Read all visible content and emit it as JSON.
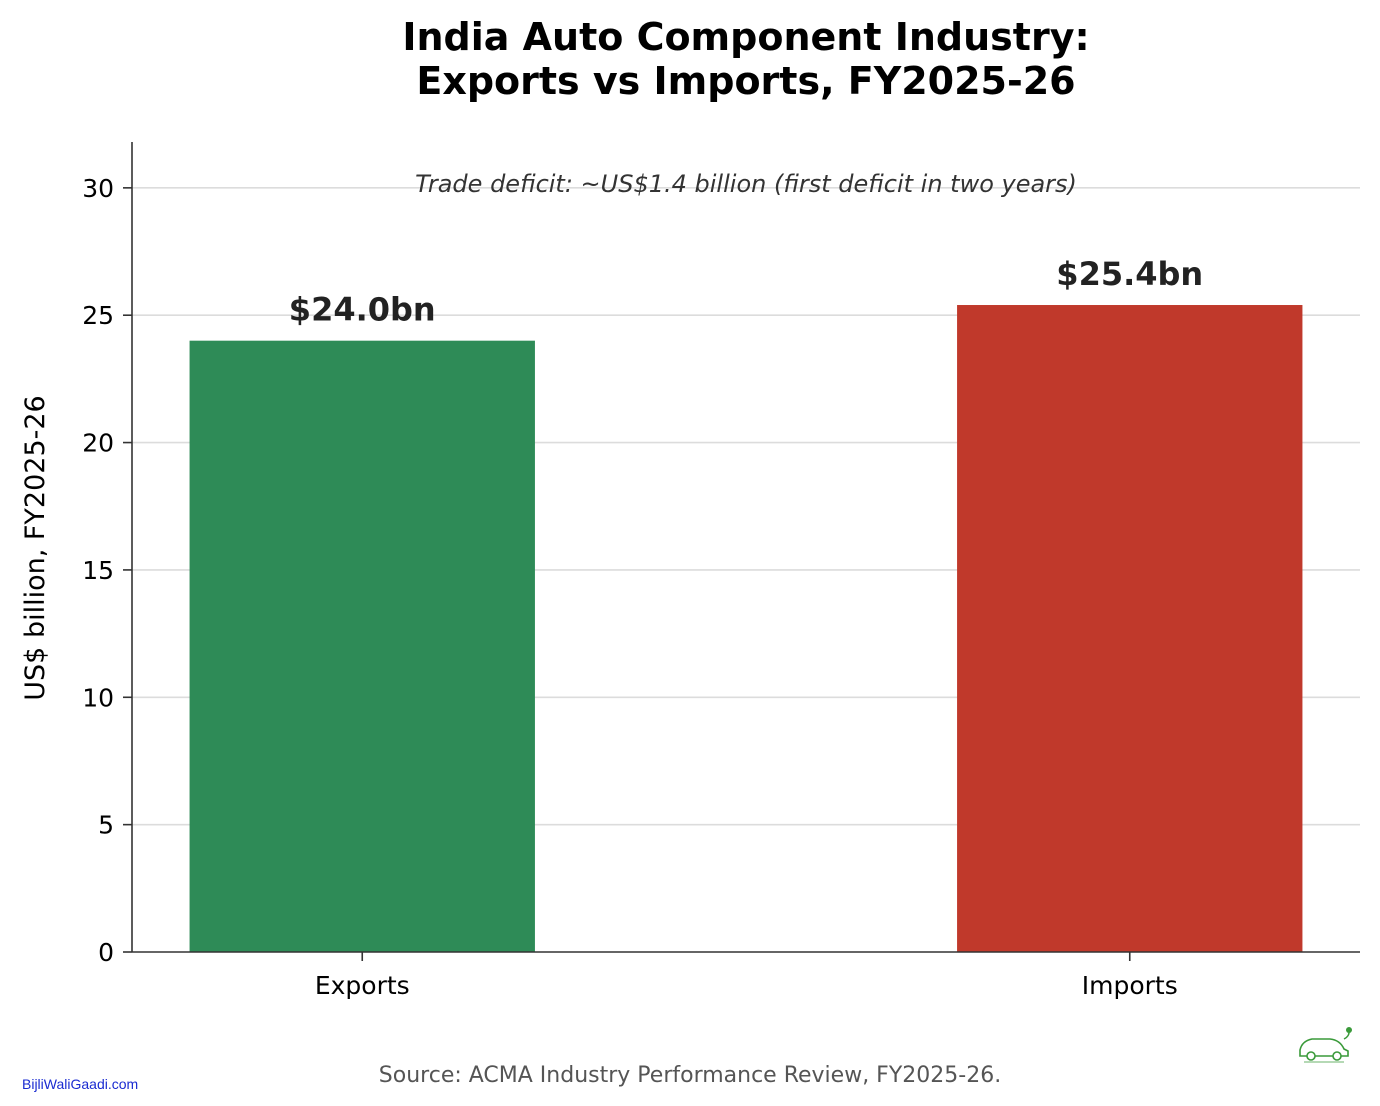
{
  "chart_data": {
    "type": "bar",
    "title_lines": [
      "India Auto Component Industry:",
      "Exports vs Imports, FY2025-26"
    ],
    "categories": [
      "Exports",
      "Imports"
    ],
    "values": [
      24.0,
      25.4
    ],
    "value_labels": [
      "$24.0bn",
      "$25.4bn"
    ],
    "colors": [
      "#2e8b57",
      "#c0392b"
    ],
    "xlabel": "",
    "ylabel": "US$ billion, FY2025-26",
    "ylim": [
      0,
      31.8
    ],
    "yticks": [
      0,
      5,
      10,
      15,
      20,
      25,
      30
    ],
    "grid": "horizontal",
    "annotation": "Trade deficit: ~US$1.4 billion (first deficit in two years)",
    "source": "Source: ACMA Industry Performance Review, FY2025-26."
  },
  "watermark": "BijliWaliGaadi.com",
  "logo_icon": "car-plug-icon"
}
